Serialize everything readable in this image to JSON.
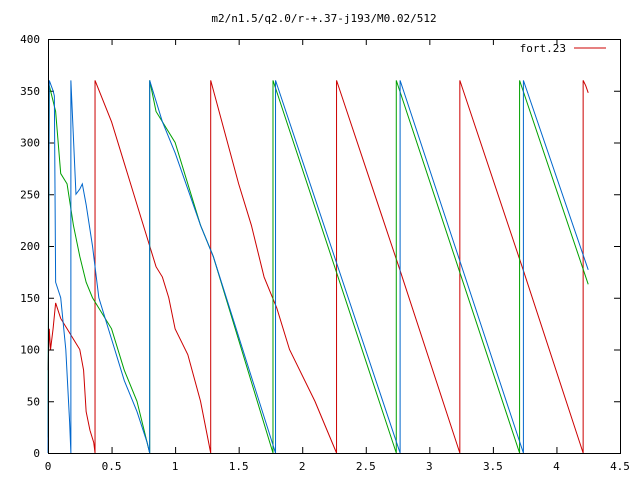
{
  "chart_data": {
    "type": "line",
    "title": "m2/n1.5/q2.0/r-+.37-j193/M0.02/512",
    "xlabel": "",
    "ylabel": "",
    "xlim": [
      0,
      4.5
    ],
    "ylim": [
      0,
      400
    ],
    "grid": false,
    "legend_position": "top-right",
    "x_ticks": [
      "0",
      "0.5",
      "1",
      "1.5",
      "2",
      "2.5",
      "3",
      "3.5",
      "4",
      "4.5"
    ],
    "y_ticks": [
      "0",
      "50",
      "100",
      "150",
      "200",
      "250",
      "300",
      "350",
      "400"
    ],
    "series": [
      {
        "name": "fort.23",
        "color": "#cc0000",
        "points": [
          [
            0.0,
            80
          ],
          [
            0.01,
            120
          ],
          [
            0.02,
            100
          ],
          [
            0.04,
            120
          ],
          [
            0.06,
            145
          ],
          [
            0.1,
            130
          ],
          [
            0.15,
            120
          ],
          [
            0.2,
            110
          ],
          [
            0.25,
            100
          ],
          [
            0.28,
            80
          ],
          [
            0.3,
            40
          ],
          [
            0.33,
            22
          ],
          [
            0.36,
            10
          ],
          [
            0.37,
            0
          ],
          [
            0.37,
            360
          ],
          [
            0.5,
            320
          ],
          [
            0.6,
            280
          ],
          [
            0.7,
            240
          ],
          [
            0.8,
            200
          ],
          [
            0.85,
            180
          ],
          [
            0.9,
            170
          ],
          [
            0.95,
            150
          ],
          [
            1.0,
            120
          ],
          [
            1.1,
            95
          ],
          [
            1.2,
            50
          ],
          [
            1.28,
            0
          ],
          [
            1.28,
            360
          ],
          [
            1.5,
            260
          ],
          [
            1.6,
            220
          ],
          [
            1.7,
            170
          ],
          [
            1.8,
            140
          ],
          [
            1.9,
            100
          ],
          [
            2.1,
            50
          ],
          [
            2.27,
            0
          ],
          [
            2.27,
            360
          ],
          [
            2.76,
            180
          ],
          [
            3.24,
            0
          ],
          [
            3.24,
            360
          ],
          [
            3.73,
            180
          ],
          [
            4.21,
            0
          ],
          [
            4.21,
            360
          ],
          [
            4.23,
            355
          ],
          [
            4.25,
            348
          ]
        ]
      },
      {
        "name": "",
        "color": "#00a000",
        "points": [
          [
            0.0,
            15
          ],
          [
            0.01,
            355
          ],
          [
            0.03,
            345
          ],
          [
            0.06,
            330
          ],
          [
            0.1,
            270
          ],
          [
            0.15,
            260
          ],
          [
            0.2,
            220
          ],
          [
            0.25,
            190
          ],
          [
            0.3,
            165
          ],
          [
            0.35,
            150
          ],
          [
            0.4,
            140
          ],
          [
            0.5,
            120
          ],
          [
            0.6,
            80
          ],
          [
            0.7,
            50
          ],
          [
            0.8,
            0
          ],
          [
            0.8,
            360
          ],
          [
            0.85,
            330
          ],
          [
            0.9,
            320
          ],
          [
            1.0,
            300
          ],
          [
            1.2,
            220
          ],
          [
            1.3,
            190
          ],
          [
            1.77,
            0
          ],
          [
            1.77,
            360
          ],
          [
            2.74,
            0
          ],
          [
            2.74,
            360
          ],
          [
            3.71,
            0
          ],
          [
            3.71,
            360
          ],
          [
            4.25,
            163
          ]
        ]
      },
      {
        "name": "",
        "color": "#0066cc",
        "points": [
          [
            0.0,
            0
          ],
          [
            0.01,
            360
          ],
          [
            0.04,
            350
          ],
          [
            0.05,
            345
          ],
          [
            0.06,
            165
          ],
          [
            0.1,
            150
          ],
          [
            0.14,
            100
          ],
          [
            0.17,
            30
          ],
          [
            0.18,
            0
          ],
          [
            0.18,
            360
          ],
          [
            0.22,
            250
          ],
          [
            0.25,
            255
          ],
          [
            0.27,
            260
          ],
          [
            0.3,
            240
          ],
          [
            0.35,
            200
          ],
          [
            0.4,
            150
          ],
          [
            0.5,
            110
          ],
          [
            0.6,
            70
          ],
          [
            0.7,
            40
          ],
          [
            0.78,
            10
          ],
          [
            0.8,
            0
          ],
          [
            0.8,
            360
          ],
          [
            0.9,
            320
          ],
          [
            1.0,
            290
          ],
          [
            1.2,
            220
          ],
          [
            1.3,
            190
          ],
          [
            1.79,
            0
          ],
          [
            1.79,
            360
          ],
          [
            2.77,
            0
          ],
          [
            2.77,
            360
          ],
          [
            3.74,
            0
          ],
          [
            3.74,
            360
          ],
          [
            4.25,
            177
          ]
        ]
      }
    ]
  }
}
